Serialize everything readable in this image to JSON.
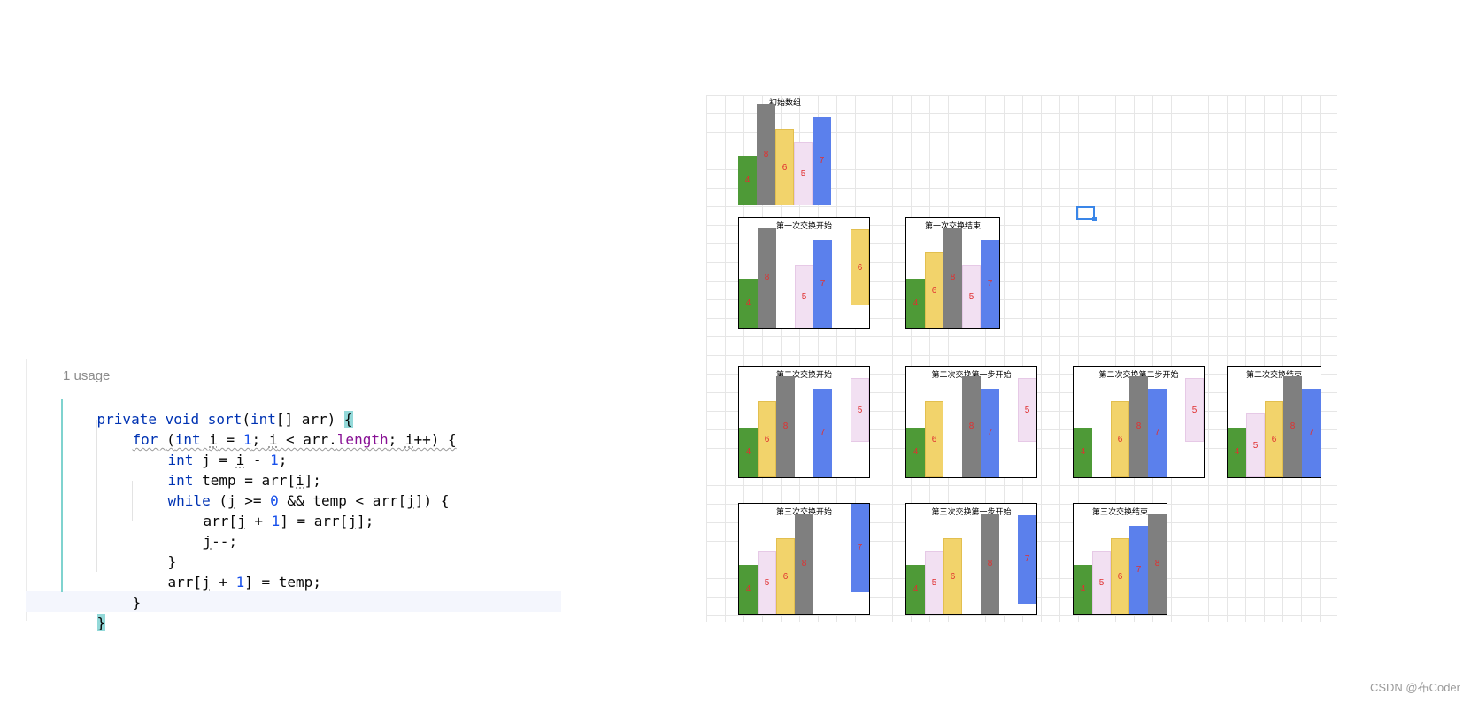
{
  "editor": {
    "usage_hint": "1 usage",
    "code": {
      "l1": [
        "private",
        "void",
        "sort",
        "(",
        "int",
        "[] arr) ",
        "{"
      ],
      "l2": [
        "for",
        "(",
        "int",
        "i",
        " = ",
        "1",
        "; ",
        "i",
        " < arr.",
        "length",
        "; ",
        "i",
        "++) {"
      ],
      "l3": [
        "int",
        " j = ",
        "i",
        " - ",
        "1",
        ";"
      ],
      "l4": [
        "int",
        " temp = arr[",
        "i",
        "];"
      ],
      "l5": [
        "while",
        " (",
        "j",
        " >= ",
        "0",
        " && temp < arr[",
        "j",
        "]) {"
      ],
      "l6": [
        "arr[",
        "j",
        " + ",
        "1",
        "] = arr[",
        "j",
        "];"
      ],
      "l7": [
        "j",
        "--;"
      ],
      "l8": [
        "}"
      ],
      "l9": [
        "arr[",
        "j",
        " + ",
        "1",
        "] = temp;"
      ],
      "l10": [
        "}"
      ],
      "l11": [
        "}"
      ]
    }
  },
  "colors": {
    "green": "#4e9a37",
    "gray": "#7f7f7f",
    "yellow": "#f2d36b",
    "pink": "#f2e0f2",
    "blue": "#5b80ec",
    "label": "#e03030",
    "grid": "#e6e6e6"
  },
  "diagram": {
    "panels": [
      {
        "title": "初始数组",
        "bars": [
          {
            "color": "green",
            "value": "4"
          },
          {
            "color": "gray",
            "value": "8"
          },
          {
            "color": "yellow",
            "value": "6"
          },
          {
            "color": "pink",
            "value": "5"
          },
          {
            "color": "blue",
            "value": "7"
          }
        ]
      },
      {
        "title": "第一次交换开始",
        "bars": [
          {
            "color": "green",
            "value": "4"
          },
          {
            "color": "gray",
            "value": "8"
          },
          {
            "color": "pink",
            "value": "5"
          },
          {
            "color": "blue",
            "value": "7"
          },
          {
            "color": "yellow",
            "value": "6"
          }
        ]
      },
      {
        "title": "第一次交换结束",
        "bars": [
          {
            "color": "green",
            "value": "4"
          },
          {
            "color": "yellow",
            "value": "6"
          },
          {
            "color": "gray",
            "value": "8"
          },
          {
            "color": "pink",
            "value": "5"
          },
          {
            "color": "blue",
            "value": "7"
          }
        ]
      },
      {
        "title": "第二次交换开始",
        "bars": [
          {
            "color": "green",
            "value": "4"
          },
          {
            "color": "yellow",
            "value": "6"
          },
          {
            "color": "gray",
            "value": "8"
          },
          {
            "color": "blue",
            "value": "7"
          },
          {
            "color": "pink",
            "value": "5"
          }
        ]
      },
      {
        "title": "第二次交换第一步开始",
        "bars": [
          {
            "color": "green",
            "value": "4"
          },
          {
            "color": "yellow",
            "value": "6"
          },
          {
            "color": "gray",
            "value": "8"
          },
          {
            "color": "blue",
            "value": "7"
          },
          {
            "color": "pink",
            "value": "5"
          }
        ]
      },
      {
        "title": "第二次交换第二步开始",
        "bars": [
          {
            "color": "green",
            "value": "4"
          },
          {
            "color": "yellow",
            "value": "6"
          },
          {
            "color": "gray",
            "value": "8"
          },
          {
            "color": "blue",
            "value": "7"
          },
          {
            "color": "pink",
            "value": "5"
          }
        ]
      },
      {
        "title": "第二次交换结束",
        "bars": [
          {
            "color": "green",
            "value": "4"
          },
          {
            "color": "pink",
            "value": "5"
          },
          {
            "color": "yellow",
            "value": "6"
          },
          {
            "color": "gray",
            "value": "8"
          },
          {
            "color": "blue",
            "value": "7"
          }
        ]
      },
      {
        "title": "第三次交换开始",
        "bars": [
          {
            "color": "green",
            "value": "4"
          },
          {
            "color": "pink",
            "value": "5"
          },
          {
            "color": "yellow",
            "value": "6"
          },
          {
            "color": "gray",
            "value": "8"
          },
          {
            "color": "blue",
            "value": "7"
          }
        ]
      },
      {
        "title": "第三次交换第一步开始",
        "bars": [
          {
            "color": "green",
            "value": "4"
          },
          {
            "color": "pink",
            "value": "5"
          },
          {
            "color": "yellow",
            "value": "6"
          },
          {
            "color": "gray",
            "value": "8"
          },
          {
            "color": "blue",
            "value": "7"
          }
        ]
      },
      {
        "title": "第三次交换结束",
        "bars": [
          {
            "color": "green",
            "value": "4"
          },
          {
            "color": "pink",
            "value": "5"
          },
          {
            "color": "yellow",
            "value": "6"
          },
          {
            "color": "blue",
            "value": "7"
          },
          {
            "color": "gray",
            "value": "8"
          }
        ]
      }
    ]
  },
  "watermark": "CSDN @布Coder"
}
